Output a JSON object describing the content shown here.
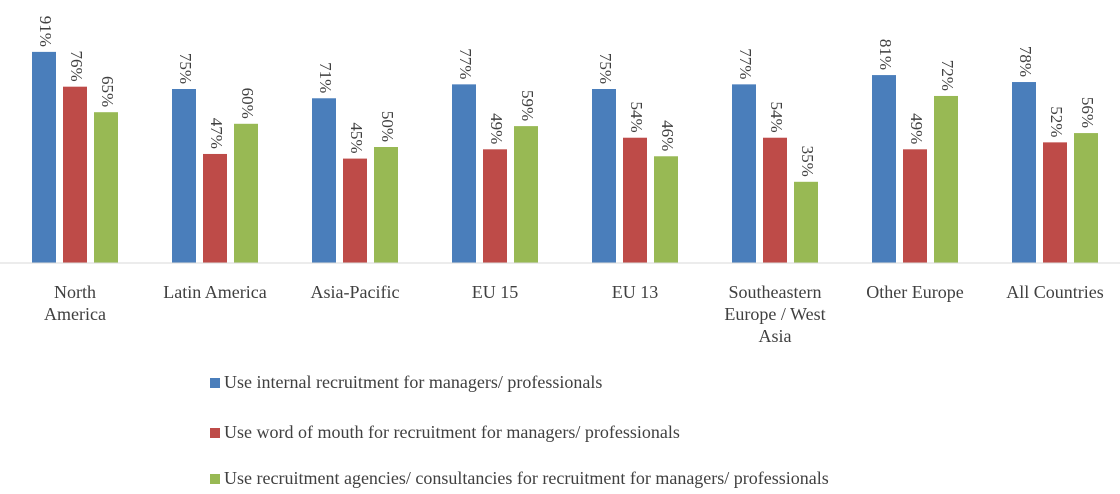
{
  "chart_data": {
    "type": "bar",
    "categories": [
      "North\nAmerica",
      "Latin America",
      "Asia-Pacific",
      "EU 15",
      "EU 13",
      "Southeastern\nEurope / West\nAsia",
      "Other Europe",
      "All Countries"
    ],
    "series": [
      {
        "name": "Use internal recruitment for managers/ professionals",
        "color": "#4a7ebb",
        "values": [
          91,
          75,
          71,
          77,
          75,
          77,
          81,
          78
        ],
        "value_labels": [
          "91%",
          "75%",
          "71%",
          "77%",
          "75%",
          "77%",
          "81%",
          "78%"
        ]
      },
      {
        "name": "Use word of mouth for recruitment for managers/ professionals",
        "color": "#be4b48",
        "values": [
          76,
          47,
          45,
          49,
          54,
          54,
          49,
          52
        ],
        "value_labels": [
          "76%",
          "47%",
          "45%",
          "49%",
          "54%",
          "54%",
          "49%",
          "52%"
        ]
      },
      {
        "name": "Use recruitment agencies/ consultancies for recruitment for managers/ professionals",
        "color": "#98b954",
        "values": [
          65,
          60,
          50,
          59,
          46,
          35,
          72,
          56
        ],
        "value_labels": [
          "65%",
          "60%",
          "50%",
          "59%",
          "46%",
          "35%",
          "72%",
          "56%"
        ]
      }
    ],
    "ylim": [
      0,
      100
    ]
  }
}
